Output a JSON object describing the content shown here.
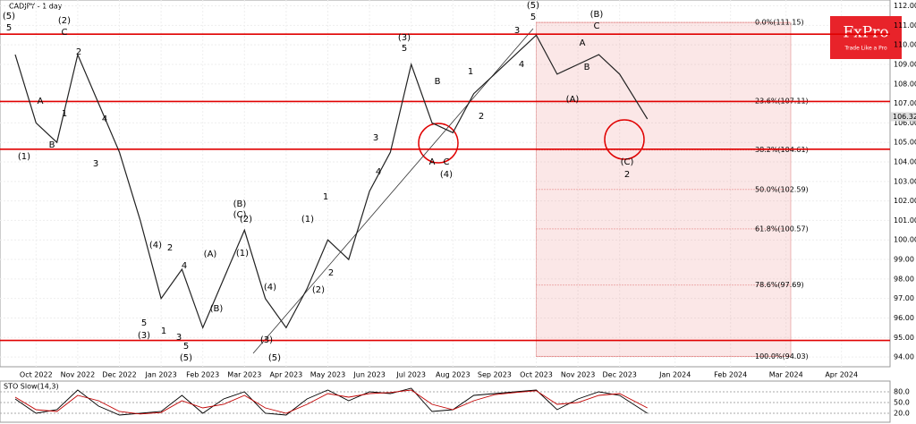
{
  "logo": {
    "name": "FxPro",
    "tagline": "Trade Like a Pro"
  },
  "chart_data": [
    {
      "type": "line",
      "title": "CADJPY - 1 day",
      "categories": [
        null,
        "Oct 2022",
        null,
        "Nov 2022",
        null,
        "Dec 2022",
        null,
        "Jan 2023",
        null,
        "Feb 2023",
        null,
        "Mar 2023",
        null,
        "Apr 2023",
        null,
        "May 2023",
        null,
        "Jun 2023",
        null,
        "Jul 2023",
        null,
        "Aug 2023",
        null,
        "Sep 2023",
        null,
        "Oct 2023",
        null,
        "Nov 2023",
        null,
        "Dec 2023",
        null,
        "Jan 2024",
        null,
        "Feb 2024",
        null,
        "Mar 2024",
        null,
        "Apr 2024",
        null
      ],
      "values": [
        109.5,
        106.0,
        105.0,
        109.5,
        107.0,
        104.5,
        101.0,
        97.0,
        98.5,
        95.5,
        98.0,
        100.5,
        97.0,
        95.5,
        97.5,
        100.0,
        99.0,
        102.5,
        104.5,
        109.0,
        106.0,
        105.5,
        107.5,
        108.5,
        109.5,
        110.5,
        108.5,
        109.0,
        109.5,
        108.5,
        106.2,
        null,
        null,
        null,
        null,
        null,
        null,
        null,
        null
      ],
      "color": "#222222",
      "levels": {
        "values": [
          110.55,
          107.1,
          104.65,
          94.85
        ],
        "color": "#e00000"
      },
      "fib_levels": [
        {
          "value": 111.15,
          "label": "0.0%(111.15)"
        },
        {
          "value": 107.11,
          "label": "23.6%(107.11)"
        },
        {
          "value": 104.61,
          "label": "38.2%(104.61)"
        },
        {
          "value": 102.59,
          "label": "50.0%(102.59)"
        },
        {
          "value": 100.57,
          "label": "61.8%(100.57)"
        },
        {
          "value": 97.69,
          "label": "78.6%(97.69)"
        },
        {
          "value": 94.03,
          "label": "100.0%(94.03)"
        }
      ],
      "last_price": {
        "value": 106.32,
        "label": "106.32"
      },
      "annotations": [
        "(5)",
        "5",
        "(2)",
        "C",
        "2",
        "A",
        "1",
        "B",
        "(1)",
        "3",
        "4",
        "(4)",
        "2",
        "4",
        "5",
        "(3)",
        "1",
        "3",
        "5",
        "(5)",
        "(A)",
        "(B)",
        "(B)",
        "(C)",
        "(2)",
        "(1)",
        "(4)",
        "(3)",
        "(5)",
        "(1)",
        "1",
        "(2)",
        "2",
        "3",
        "4",
        "(3)",
        "5",
        "B",
        "1",
        "2",
        "A",
        "C",
        "(4)",
        "3",
        "4",
        "(5)",
        "5",
        "A",
        "B",
        "(B)",
        "C",
        "(A)",
        "(C)",
        "2"
      ],
      "ylim": [
        93.5,
        112.3
      ],
      "yticks": [
        {
          "value": 94,
          "label": "94.00"
        },
        {
          "value": 95,
          "label": "95.00"
        },
        {
          "value": 96,
          "label": "96.00"
        },
        {
          "value": 97,
          "label": "97.00"
        },
        {
          "value": 98,
          "label": "98.00"
        },
        {
          "value": 99,
          "label": "99.00"
        },
        {
          "value": 100,
          "label": "100.00"
        },
        {
          "value": 101,
          "label": "101.00"
        },
        {
          "value": 102,
          "label": "102.00"
        },
        {
          "value": 103,
          "label": "103.00"
        },
        {
          "value": 104,
          "label": "104.00"
        },
        {
          "value": 105,
          "label": "105.00"
        },
        {
          "value": 106,
          "label": "106.00"
        },
        {
          "value": 107,
          "label": "107.00"
        },
        {
          "value": 108,
          "label": "108.00"
        },
        {
          "value": 109,
          "label": "109.00"
        },
        {
          "value": 110,
          "label": "110.00"
        },
        {
          "value": 111,
          "label": "111.00"
        },
        {
          "value": 112,
          "label": "112.00"
        }
      ],
      "grid": true
    },
    {
      "type": "line",
      "title": "STO Slow(14,3)",
      "series": [
        {
          "color": "#000000",
          "values": [
            60,
            20,
            30,
            85,
            40,
            15,
            20,
            25,
            70,
            20,
            60,
            80,
            20,
            15,
            60,
            85,
            55,
            80,
            75,
            90,
            25,
            30,
            70,
            75,
            80,
            85,
            30,
            60,
            80,
            70,
            20,
            null,
            null,
            null,
            null,
            null,
            null,
            null,
            null
          ]
        },
        {
          "color": "#c00000",
          "values": [
            65,
            30,
            25,
            70,
            55,
            25,
            18,
            22,
            55,
            35,
            45,
            70,
            35,
            20,
            45,
            75,
            65,
            75,
            78,
            85,
            45,
            30,
            55,
            72,
            78,
            83,
            45,
            50,
            70,
            75,
            35,
            null,
            null,
            null,
            null,
            null,
            null,
            null,
            null
          ]
        }
      ],
      "ylim": [
        0,
        100
      ],
      "yticks": [
        {
          "value": 80,
          "label": "80.0"
        },
        {
          "value": 50,
          "label": "50.0"
        },
        {
          "value": 20,
          "label": "20.0"
        }
      ]
    }
  ]
}
